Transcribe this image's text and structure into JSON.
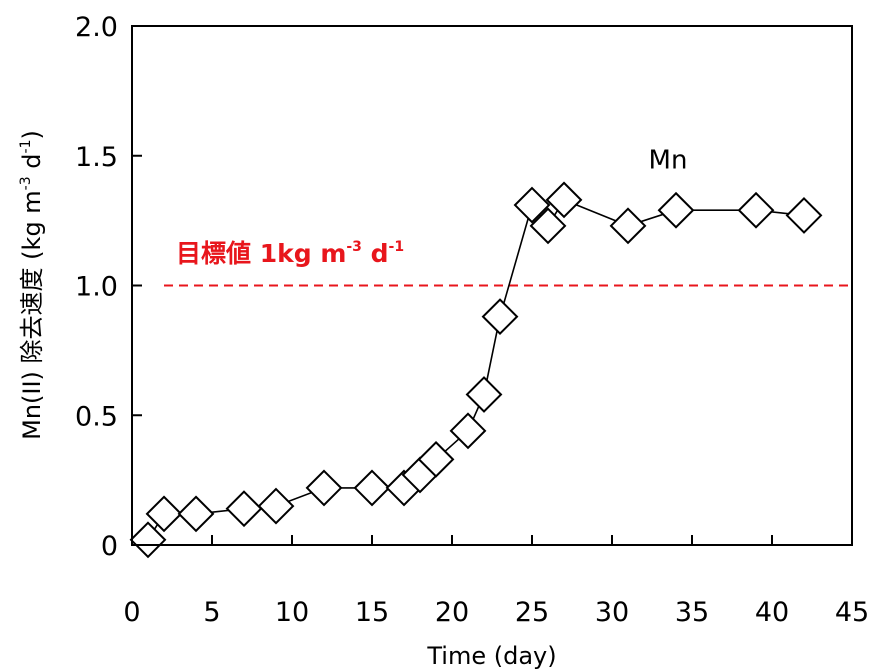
{
  "chart_data": {
    "type": "line",
    "title": "",
    "xlabel": "Time (day)",
    "ylabel": {
      "prefix": "Mn(II) 除去速度 (kg m",
      "sup1": "-3",
      "mid": " d",
      "sup2": "-1",
      "suffix": ")"
    },
    "xlim": [
      0,
      45
    ],
    "ylim": [
      0,
      2.0
    ],
    "xticks": [
      0,
      5,
      10,
      15,
      20,
      25,
      30,
      35,
      40,
      45
    ],
    "xtick_labels": [
      "0",
      "5",
      "10",
      "15",
      "20",
      "25",
      "30",
      "35",
      "40",
      "45"
    ],
    "yticks": [
      0,
      0.5,
      1.0,
      1.5,
      2.0
    ],
    "ytick_labels": [
      "0",
      "0.5",
      "1.0",
      "1.5",
      "2.0"
    ],
    "grid": false,
    "series": [
      {
        "name": "Mn",
        "marker": "diamond-open",
        "color": "#000000",
        "x": [
          1,
          2,
          4,
          7,
          9,
          12,
          15,
          17,
          18,
          19,
          21,
          22,
          23,
          25,
          26,
          27,
          31,
          34,
          39,
          42
        ],
        "y": [
          0.02,
          0.12,
          0.12,
          0.14,
          0.15,
          0.22,
          0.22,
          0.22,
          0.27,
          0.33,
          0.44,
          0.58,
          0.88,
          1.31,
          1.23,
          1.33,
          1.23,
          1.29,
          1.29,
          1.27
        ]
      }
    ],
    "series_label": {
      "text": "Mn",
      "x": 33.5,
      "y": 1.45
    },
    "reference_line": {
      "y": 1.0,
      "color": "#e8161c",
      "style": "dashed",
      "label": {
        "main": "目標値 1kg m",
        "sup1": "-3",
        "mid": " d",
        "sup2": "-1"
      }
    }
  }
}
